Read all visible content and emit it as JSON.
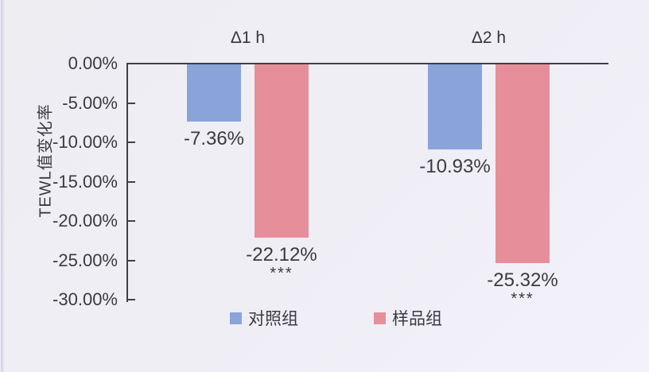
{
  "colors": {
    "control": "#8AA4DA",
    "sample": "#E68F9B",
    "axis": "#3F3F46",
    "text": "#3A3A40",
    "background": "#EFEEF4",
    "left_strip": "#CFC7E3"
  },
  "chart_data": {
    "type": "bar",
    "title": "",
    "ylabel": "TEWL值变化率",
    "xlabel": "",
    "ylim": [
      -30,
      0
    ],
    "ytick_step": 5,
    "ytick_labels": [
      "0.00%",
      "-5.00%",
      "-10.00%",
      "-15.00%",
      "-20.00%",
      "-25.00%",
      "-30.00%"
    ],
    "grid": "off",
    "legend_position": "bottom",
    "categories": [
      "Δ1 h",
      "Δ2 h"
    ],
    "series": [
      {
        "name": "对照组",
        "color": "#8AA4DA",
        "values": [
          -7.36,
          -10.93
        ],
        "labels": [
          "-7.36%",
          "-10.93%"
        ],
        "significance": [
          "",
          ""
        ]
      },
      {
        "name": "样品组",
        "color": "#E68F9B",
        "values": [
          -22.12,
          -25.32
        ],
        "labels": [
          "-22.12%",
          "-25.32%"
        ],
        "significance": [
          "***",
          "***"
        ]
      }
    ]
  }
}
